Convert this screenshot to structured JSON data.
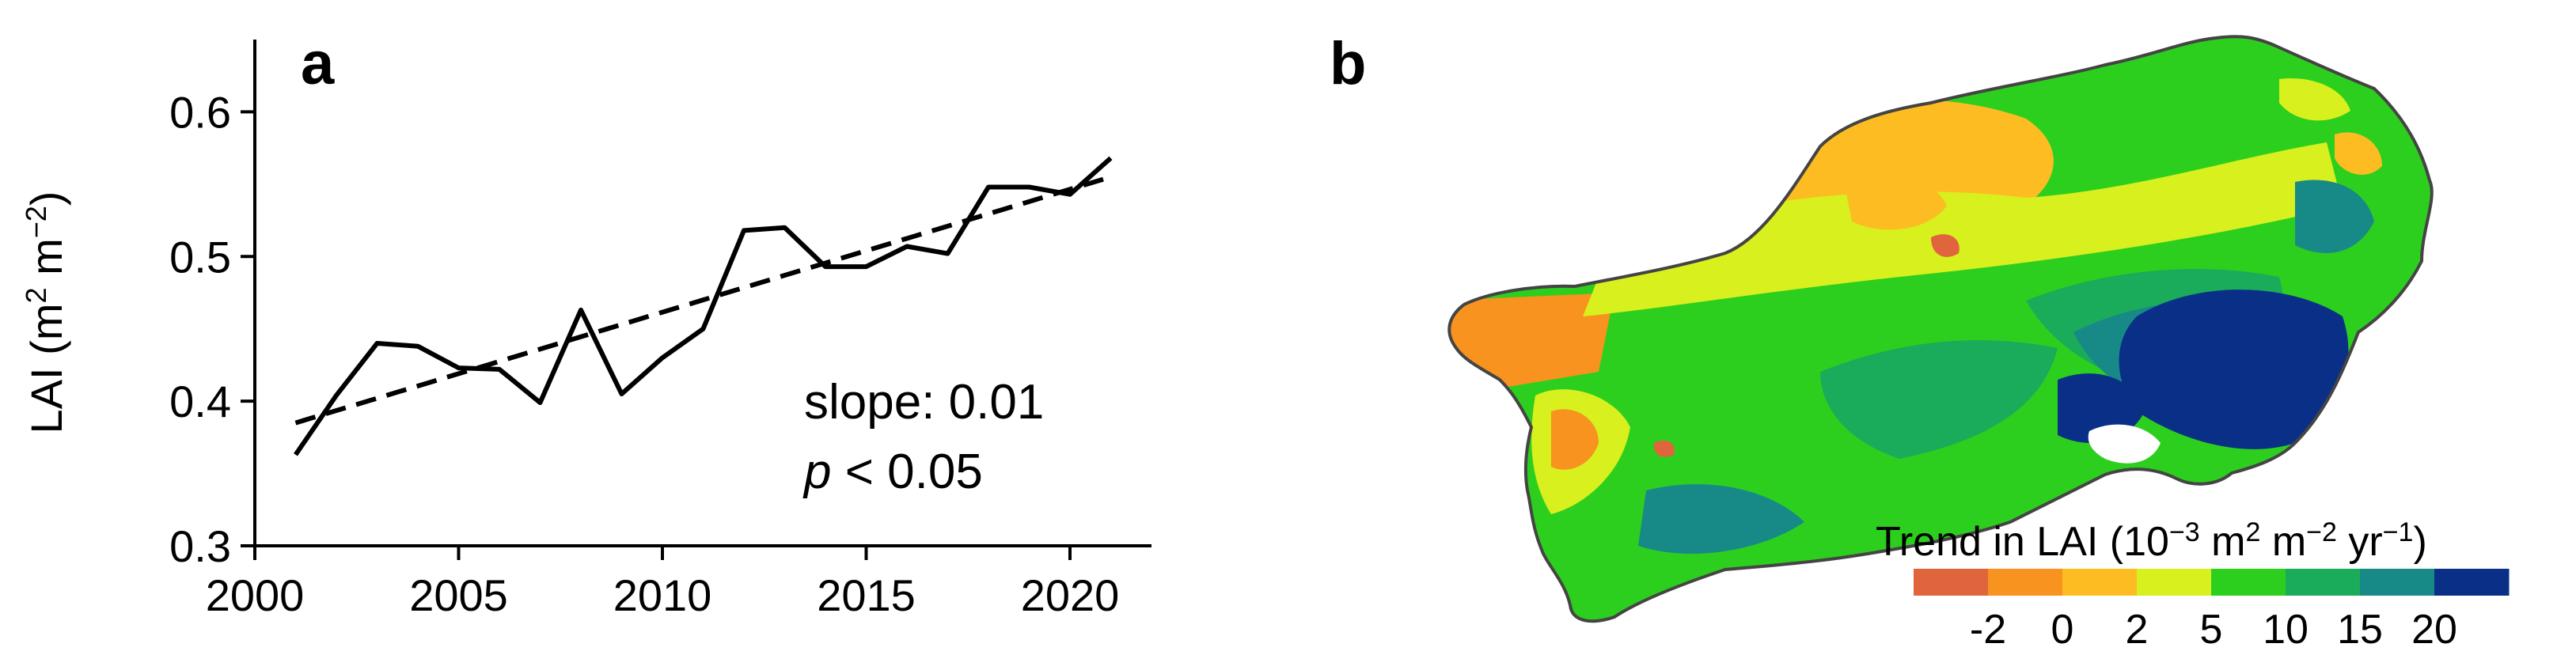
{
  "panels": {
    "a": {
      "letter": "a"
    },
    "b": {
      "letter": "b"
    }
  },
  "chart_data": [
    {
      "panel": "a",
      "type": "line",
      "ylabel_base": "LAI (m",
      "ylabel_sup1": "2",
      "ylabel_mid": " m",
      "ylabel_sup2": "−2",
      "ylabel_end": ")",
      "xlim": [
        2000,
        2022
      ],
      "ylim": [
        0.3,
        0.65
      ],
      "xticks": [
        2000,
        2005,
        2010,
        2015,
        2020
      ],
      "yticks": [
        0.3,
        0.4,
        0.5,
        0.6
      ],
      "x": [
        2001,
        2002,
        2003,
        2004,
        2005,
        2006,
        2007,
        2008,
        2009,
        2010,
        2011,
        2012,
        2013,
        2014,
        2015,
        2016,
        2017,
        2018,
        2019,
        2020,
        2021
      ],
      "series": [
        {
          "style": "solid",
          "values": [
            0.363,
            0.404,
            0.44,
            0.438,
            0.423,
            0.422,
            0.399,
            0.463,
            0.405,
            0.43,
            0.45,
            0.518,
            0.52,
            0.493,
            0.493,
            0.507,
            0.502,
            0.548,
            0.548,
            0.543,
            0.568
          ]
        },
        {
          "style": "dashed",
          "trend_start": [
            2001,
            0.385
          ],
          "trend_end": [
            2021,
            0.555
          ]
        }
      ],
      "annotations": {
        "slope_text": "slope: 0.01",
        "p_italic": "p",
        "p_rest": " < 0.05"
      }
    },
    {
      "panel": "b",
      "type": "heatmap",
      "legend_title": "Trend in LAI (10",
      "legend_sup1": "−3",
      "legend_mid1": " m",
      "legend_sup2": "2",
      "legend_mid2": " m",
      "legend_sup3": "−2",
      "legend_mid3": " yr",
      "legend_sup4": "−1",
      "legend_end": ")",
      "tick_labels": [
        "-2",
        "0",
        "2",
        "5",
        "10",
        "15",
        "20"
      ],
      "colors": [
        "#e0643c",
        "#f7931e",
        "#fdbd22",
        "#d7f01e",
        "#2dcf1e",
        "#1aac5a",
        "#178a88",
        "#0a2f86"
      ],
      "outline_color": "#444444"
    }
  ]
}
